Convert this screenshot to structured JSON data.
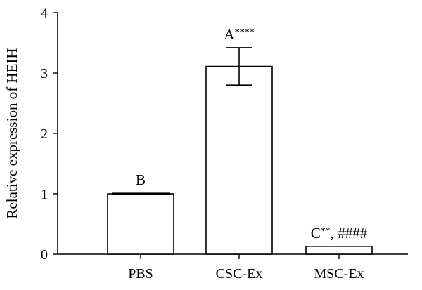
{
  "chart_data": {
    "type": "bar",
    "categories": [
      "PBS",
      "CSC-Ex",
      "MSC-Ex"
    ],
    "values": [
      1.0,
      3.11,
      0.13
    ],
    "errors": [
      0.01,
      0.31,
      0.0
    ],
    "ylabel": "Relative expression of HEIH",
    "ylim": [
      0,
      4
    ],
    "yticks": [
      0,
      1,
      2,
      3,
      4
    ],
    "annotations": [
      {
        "letter": "B",
        "marks": ""
      },
      {
        "letter": "A",
        "marks": "****"
      },
      {
        "letter": "C",
        "marks": "**, ####"
      }
    ],
    "grid": false
  }
}
